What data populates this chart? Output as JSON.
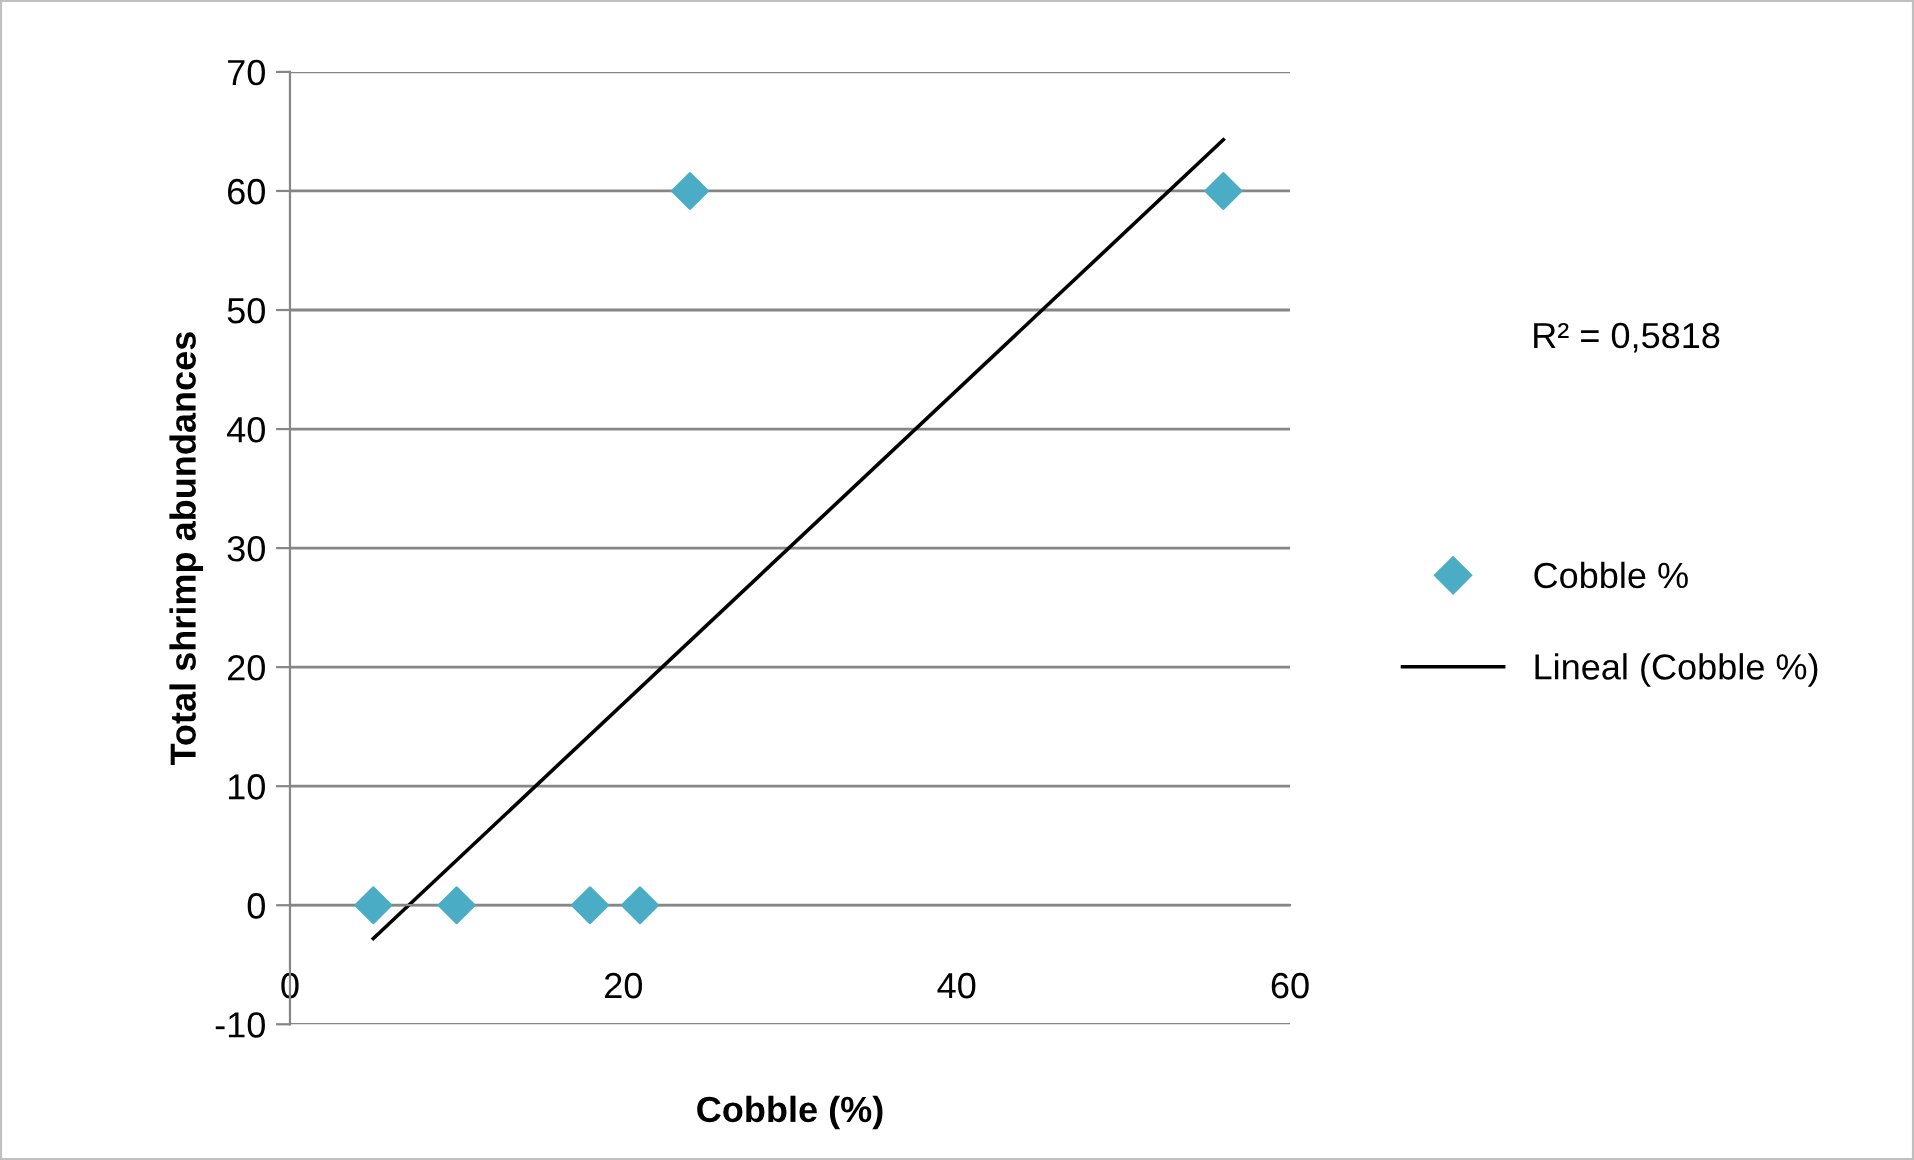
{
  "chart_data": {
    "type": "scatter",
    "xlabel": "Cobble (%)",
    "ylabel": "Total shrimp abundances",
    "series": [
      {
        "name": "Cobble %",
        "color": "#4bacc6",
        "marker": "diamond",
        "x": [
          5,
          10,
          18,
          21,
          24,
          56
        ],
        "values": [
          0,
          0,
          0,
          0,
          60,
          60
        ]
      },
      {
        "name": "Lineal (Cobble %)",
        "type": "line",
        "color": "#000000",
        "x": [
          5,
          56
        ],
        "values": [
          -2.8,
          64.3
        ]
      }
    ],
    "xlim": [
      0,
      60
    ],
    "xticks": [
      0,
      20,
      40,
      60
    ],
    "ylim": [
      -10,
      70
    ],
    "yticks": [
      -10,
      0,
      10,
      20,
      30,
      40,
      50,
      60,
      70
    ],
    "grid": "y",
    "legend": "right",
    "annotations": [
      "R² = 0,5818"
    ]
  }
}
